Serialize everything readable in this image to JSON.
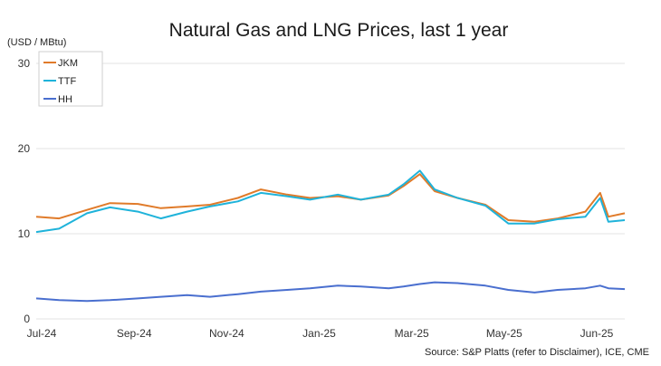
{
  "chart_data": {
    "type": "line",
    "title": "Natural Gas and LNG Prices, last 1 year",
    "ylabel": "(USD / MBtu)",
    "xlabel": "",
    "source": "Source: S&P Platts (refer to Disclaimer), ICE, CME",
    "ylim": [
      0,
      30
    ],
    "yticks": [
      0,
      10,
      20,
      30
    ],
    "x_tick_labels": [
      "Jul-24",
      "Sep-24",
      "Nov-24",
      "Jan-25",
      "Mar-25",
      "May-25",
      "Jun-25"
    ],
    "legend_position": "top-left",
    "grid": "horizontal",
    "x": [
      "2024-07-01",
      "2024-07-15",
      "2024-08-01",
      "2024-08-15",
      "2024-09-01",
      "2024-09-15",
      "2024-10-01",
      "2024-10-15",
      "2024-11-01",
      "2024-11-15",
      "2024-12-01",
      "2024-12-15",
      "2025-01-01",
      "2025-01-15",
      "2025-02-01",
      "2025-02-10",
      "2025-02-20",
      "2025-03-01",
      "2025-03-15",
      "2025-04-01",
      "2025-04-15",
      "2025-05-01",
      "2025-05-15",
      "2025-06-01",
      "2025-06-10",
      "2025-06-15",
      "2025-06-25"
    ],
    "series": [
      {
        "name": "JKM",
        "color": "#e07b2a",
        "values": [
          12.0,
          11.8,
          12.8,
          13.6,
          13.5,
          13.0,
          13.2,
          13.4,
          14.2,
          15.2,
          14.6,
          14.2,
          14.4,
          14.0,
          14.5,
          15.6,
          17.0,
          15.0,
          14.2,
          13.4,
          11.6,
          11.4,
          11.8,
          12.6,
          14.8,
          12.0,
          12.4
        ]
      },
      {
        "name": "TTF",
        "color": "#1fb3da",
        "values": [
          10.2,
          10.6,
          12.4,
          13.1,
          12.6,
          11.8,
          12.6,
          13.2,
          13.8,
          14.8,
          14.4,
          14.0,
          14.6,
          14.0,
          14.6,
          15.8,
          17.4,
          15.2,
          14.2,
          13.3,
          11.2,
          11.2,
          11.7,
          12.0,
          14.2,
          11.4,
          11.6
        ]
      },
      {
        "name": "HH",
        "color": "#4a6fcf",
        "values": [
          2.4,
          2.2,
          2.1,
          2.2,
          2.4,
          2.6,
          2.8,
          2.6,
          2.9,
          3.2,
          3.4,
          3.6,
          3.9,
          3.8,
          3.6,
          3.8,
          4.1,
          4.3,
          4.2,
          3.9,
          3.4,
          3.1,
          3.4,
          3.6,
          3.9,
          3.6,
          3.5
        ]
      }
    ]
  }
}
